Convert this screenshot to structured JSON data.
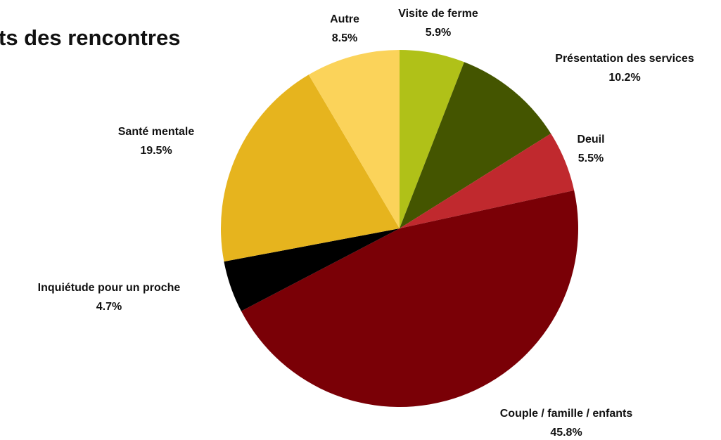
{
  "chart_data": {
    "type": "pie",
    "title": "ts des rencontres",
    "categories": [
      "Visite de ferme",
      "Présentation des services",
      "Deuil",
      "Couple / famille / enfants",
      "Inquiétude pour un proche",
      "Santé mentale",
      "Autre"
    ],
    "values": [
      5.9,
      10.2,
      5.5,
      45.8,
      4.7,
      19.5,
      8.5
    ],
    "value_labels": [
      "5.9%",
      "10.2%",
      "5.5%",
      "45.8%",
      "4.7%",
      "19.5%",
      "8.5%"
    ],
    "colors": [
      "#b0c118",
      "#445500",
      "#c0292e",
      "#7a0006",
      "#000000",
      "#e6b41e",
      "#fbd35a"
    ]
  }
}
